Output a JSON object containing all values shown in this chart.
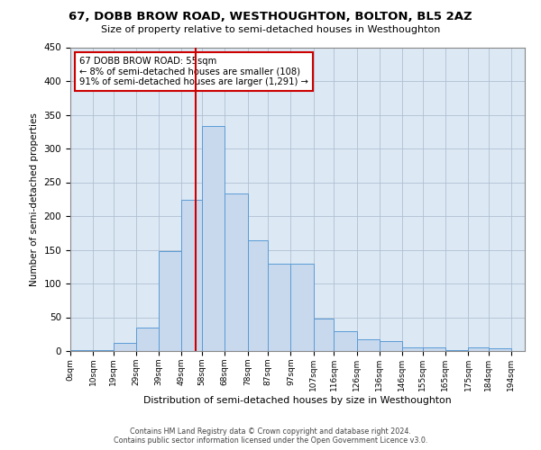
{
  "title": "67, DOBB BROW ROAD, WESTHOUGHTON, BOLTON, BL5 2AZ",
  "subtitle": "Size of property relative to semi-detached houses in Westhoughton",
  "xlabel": "Distribution of semi-detached houses by size in Westhoughton",
  "ylabel": "Number of semi-detached properties",
  "footer_line1": "Contains HM Land Registry data © Crown copyright and database right 2024.",
  "footer_line2": "Contains public sector information licensed under the Open Government Licence v3.0.",
  "annotation_title": "67 DOBB BROW ROAD: 55sqm",
  "annotation_line1": "← 8% of semi-detached houses are smaller (108)",
  "annotation_line2": "91% of semi-detached houses are larger (1,291) →",
  "property_size": 55,
  "bar_left_edges": [
    0,
    10,
    19,
    29,
    39,
    49,
    58,
    68,
    78,
    87,
    97,
    107,
    116,
    126,
    136,
    146,
    155,
    165,
    175,
    184
  ],
  "bar_heights": [
    2,
    1,
    12,
    35,
    148,
    224,
    334,
    234,
    164,
    130,
    130,
    48,
    30,
    18,
    15,
    6,
    6,
    1,
    5,
    4
  ],
  "tick_labels": [
    "0sqm",
    "10sqm",
    "19sqm",
    "29sqm",
    "39sqm",
    "49sqm",
    "58sqm",
    "68sqm",
    "78sqm",
    "87sqm",
    "97sqm",
    "107sqm",
    "116sqm",
    "126sqm",
    "136sqm",
    "146sqm",
    "155sqm",
    "165sqm",
    "175sqm",
    "184sqm",
    "194sqm"
  ],
  "tick_positions": [
    0,
    10,
    19,
    29,
    39,
    49,
    58,
    68,
    78,
    87,
    97,
    107,
    116,
    126,
    136,
    146,
    155,
    165,
    175,
    184,
    194
  ],
  "bar_color": "#c8d9ee",
  "bar_edge_color": "#5b9bd5",
  "vline_color": "#cc0000",
  "vline_x": 55,
  "annotation_box_color": "#cc0000",
  "background_color": "#ffffff",
  "axes_bg_color": "#dce9f5",
  "grid_color": "#b0bfd0",
  "ylim": [
    0,
    450
  ],
  "xlim": [
    0,
    200
  ]
}
